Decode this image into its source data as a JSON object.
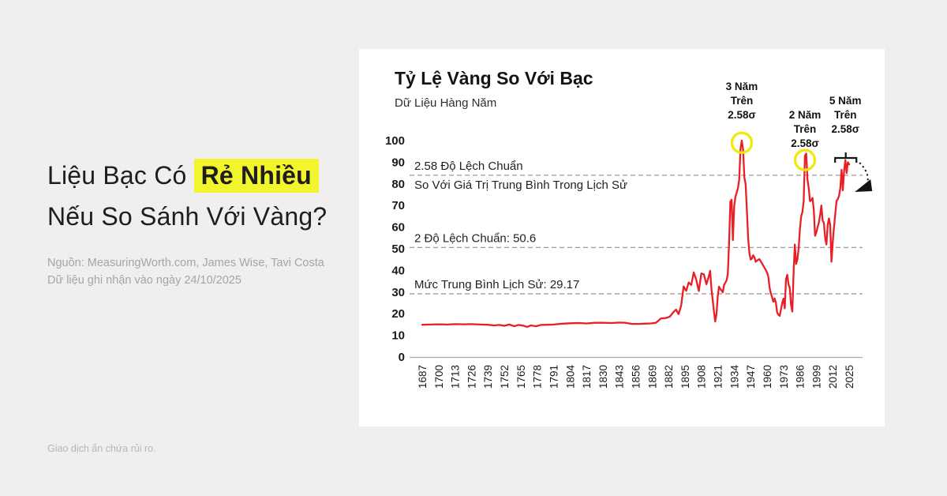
{
  "page": {
    "background": "#f0efee",
    "headline": {
      "prefix": "Liệu Bạc Có ",
      "highlight": "Rẻ Nhiều",
      "line2": "Nếu So Sánh Với Vàng?",
      "highlight_color": "#f2f52b"
    },
    "source_line1": "Nguồn: MeasuringWorth.com, James Wise, Tavi Costa",
    "source_line2": "Dữ liệu ghi nhận vào ngày 24/10/2025",
    "disclaimer": "Giao dịch ẩn chứa rủi ro."
  },
  "chart_data": {
    "type": "line",
    "title": "Tỷ Lệ Vàng So Với Bạc",
    "subtitle": "Dữ Liệu Hàng Năm",
    "xlabel": "",
    "ylabel": "",
    "xlim": [
      1687,
      2025
    ],
    "ylim": [
      0,
      100
    ],
    "grid": false,
    "legend": false,
    "line_color": "#e81f27",
    "marker_color": "#f2e70b",
    "yticks": [
      0,
      10,
      20,
      30,
      40,
      50,
      60,
      70,
      80,
      90,
      100
    ],
    "xticks": [
      1687,
      1700,
      1713,
      1726,
      1739,
      1752,
      1765,
      1778,
      1791,
      1804,
      1817,
      1830,
      1843,
      1856,
      1869,
      1882,
      1895,
      1908,
      1921,
      1934,
      1947,
      1960,
      1973,
      1986,
      1999,
      2012,
      2025
    ],
    "reference_lines": [
      {
        "value": 84,
        "labels": [
          "2.58 Độ Lệch Chuẩn",
          "So Với Giá Trị Trung Bình Trong Lịch Sử"
        ]
      },
      {
        "value": 50.6,
        "labels": [
          "2 Độ Lệch Chuẩn: 50.6"
        ]
      },
      {
        "value": 29.17,
        "labels": [
          "Mức Trung Bình Lịch Sử: 29.17"
        ]
      }
    ],
    "annotations": [
      {
        "lines": [
          "3 Năm",
          "Trên",
          "2.58σ"
        ],
        "year": 1940,
        "peak_value": 99,
        "marker": "circle"
      },
      {
        "lines": [
          "2 Năm",
          "Trên",
          "2.58σ"
        ],
        "year": 1990,
        "peak_value": 91,
        "marker": "circle"
      },
      {
        "lines": [
          "5 Năm",
          "Trên",
          "2.58σ"
        ],
        "year": 2022,
        "marker": "bracket-arrow"
      }
    ],
    "series": [
      {
        "name": "Tỷ lệ vàng so với bạc",
        "points": [
          [
            1687,
            14.9
          ],
          [
            1693,
            15.0
          ],
          [
            1700,
            15.1
          ],
          [
            1707,
            15.0
          ],
          [
            1713,
            15.2
          ],
          [
            1720,
            15.1
          ],
          [
            1726,
            15.2
          ],
          [
            1733,
            15.0
          ],
          [
            1739,
            14.9
          ],
          [
            1744,
            14.6
          ],
          [
            1748,
            14.8
          ],
          [
            1752,
            14.4
          ],
          [
            1756,
            15.0
          ],
          [
            1760,
            14.2
          ],
          [
            1763,
            14.8
          ],
          [
            1767,
            14.5
          ],
          [
            1770,
            13.9
          ],
          [
            1773,
            14.6
          ],
          [
            1777,
            14.2
          ],
          [
            1781,
            14.8
          ],
          [
            1786,
            14.9
          ],
          [
            1791,
            15.0
          ],
          [
            1798,
            15.4
          ],
          [
            1804,
            15.6
          ],
          [
            1811,
            15.7
          ],
          [
            1817,
            15.5
          ],
          [
            1824,
            15.8
          ],
          [
            1830,
            15.8
          ],
          [
            1837,
            15.7
          ],
          [
            1843,
            15.9
          ],
          [
            1848,
            15.8
          ],
          [
            1853,
            15.3
          ],
          [
            1858,
            15.3
          ],
          [
            1863,
            15.4
          ],
          [
            1868,
            15.5
          ],
          [
            1872,
            15.8
          ],
          [
            1876,
            17.8
          ],
          [
            1880,
            18.0
          ],
          [
            1883,
            18.6
          ],
          [
            1886,
            20.8
          ],
          [
            1888,
            21.9
          ],
          [
            1890,
            19.8
          ],
          [
            1892,
            23.7
          ],
          [
            1894,
            32.6
          ],
          [
            1896,
            30.6
          ],
          [
            1898,
            34.4
          ],
          [
            1900,
            33.3
          ],
          [
            1902,
            39.1
          ],
          [
            1904,
            35.7
          ],
          [
            1906,
            30.5
          ],
          [
            1908,
            38.6
          ],
          [
            1910,
            38.2
          ],
          [
            1912,
            33.6
          ],
          [
            1914,
            37.4
          ],
          [
            1915,
            39.8
          ],
          [
            1916,
            31.6
          ],
          [
            1918,
            21.0
          ],
          [
            1919,
            16.4
          ],
          [
            1920,
            19.8
          ],
          [
            1921,
            28.0
          ],
          [
            1922,
            32.5
          ],
          [
            1923,
            31.5
          ],
          [
            1925,
            29.9
          ],
          [
            1926,
            33.3
          ],
          [
            1928,
            35.4
          ],
          [
            1929,
            38.5
          ],
          [
            1930,
            53.3
          ],
          [
            1931,
            71.8
          ],
          [
            1932,
            72.7
          ],
          [
            1933,
            54.0
          ],
          [
            1934,
            69.5
          ],
          [
            1935,
            74.0
          ],
          [
            1936,
            76.0
          ],
          [
            1937,
            78.0
          ],
          [
            1938,
            82.0
          ],
          [
            1939,
            96.0
          ],
          [
            1940,
            100.0
          ],
          [
            1941,
            96.0
          ],
          [
            1942,
            83.0
          ],
          [
            1943,
            80.0
          ],
          [
            1944,
            68.0
          ],
          [
            1945,
            55.0
          ],
          [
            1946,
            48.0
          ],
          [
            1947,
            45.0
          ],
          [
            1948,
            45.5
          ],
          [
            1949,
            47.0
          ],
          [
            1950,
            46.0
          ],
          [
            1951,
            44.0
          ],
          [
            1952,
            44.5
          ],
          [
            1953,
            45.0
          ],
          [
            1954,
            45.2
          ],
          [
            1955,
            44.2
          ],
          [
            1956,
            43.2
          ],
          [
            1957,
            42.2
          ],
          [
            1958,
            41.2
          ],
          [
            1959,
            40.2
          ],
          [
            1960,
            39.0
          ],
          [
            1961,
            37.0
          ],
          [
            1962,
            32.0
          ],
          [
            1963,
            29.5
          ],
          [
            1964,
            27.5
          ],
          [
            1965,
            25.5
          ],
          [
            1966,
            27.0
          ],
          [
            1967,
            25.0
          ],
          [
            1968,
            20.5
          ],
          [
            1969,
            19.5
          ],
          [
            1970,
            19.0
          ],
          [
            1971,
            22.0
          ],
          [
            1972,
            25.0
          ],
          [
            1973,
            27.0
          ],
          [
            1974,
            22.5
          ],
          [
            1975,
            36.0
          ],
          [
            1976,
            38.0
          ],
          [
            1977,
            33.5
          ],
          [
            1978,
            32.0
          ],
          [
            1979,
            24.0
          ],
          [
            1980,
            21.0
          ],
          [
            1981,
            39.0
          ],
          [
            1982,
            52.0
          ],
          [
            1983,
            43.0
          ],
          [
            1984,
            45.0
          ],
          [
            1985,
            50.0
          ],
          [
            1986,
            59.0
          ],
          [
            1987,
            65.0
          ],
          [
            1988,
            67.0
          ],
          [
            1989,
            72.0
          ],
          [
            1990,
            93.0
          ],
          [
            1991,
            94.0
          ],
          [
            1992,
            82.0
          ],
          [
            1993,
            78.0
          ],
          [
            1994,
            72.0
          ],
          [
            1995,
            72.5
          ],
          [
            1996,
            73.5
          ],
          [
            1997,
            68.0
          ],
          [
            1998,
            56.0
          ],
          [
            1999,
            57.5
          ],
          [
            2000,
            60.0
          ],
          [
            2001,
            62.0
          ],
          [
            2002,
            65.5
          ],
          [
            2003,
            70.0
          ],
          [
            2004,
            63.0
          ],
          [
            2005,
            62.0
          ],
          [
            2006,
            55.0
          ],
          [
            2007,
            52.0
          ],
          [
            2008,
            61.0
          ],
          [
            2009,
            64.0
          ],
          [
            2010,
            61.0
          ],
          [
            2011,
            44.0
          ],
          [
            2012,
            53.0
          ],
          [
            2013,
            60.0
          ],
          [
            2014,
            66.0
          ],
          [
            2015,
            72.0
          ],
          [
            2016,
            73.0
          ],
          [
            2017,
            74.5
          ],
          [
            2018,
            78.0
          ],
          [
            2019,
            86.5
          ],
          [
            2020,
            77.0
          ],
          [
            2021,
            86.0
          ],
          [
            2022,
            91.0
          ],
          [
            2023,
            85.0
          ],
          [
            2024,
            90.0
          ],
          [
            2025,
            89.0
          ]
        ]
      }
    ]
  }
}
